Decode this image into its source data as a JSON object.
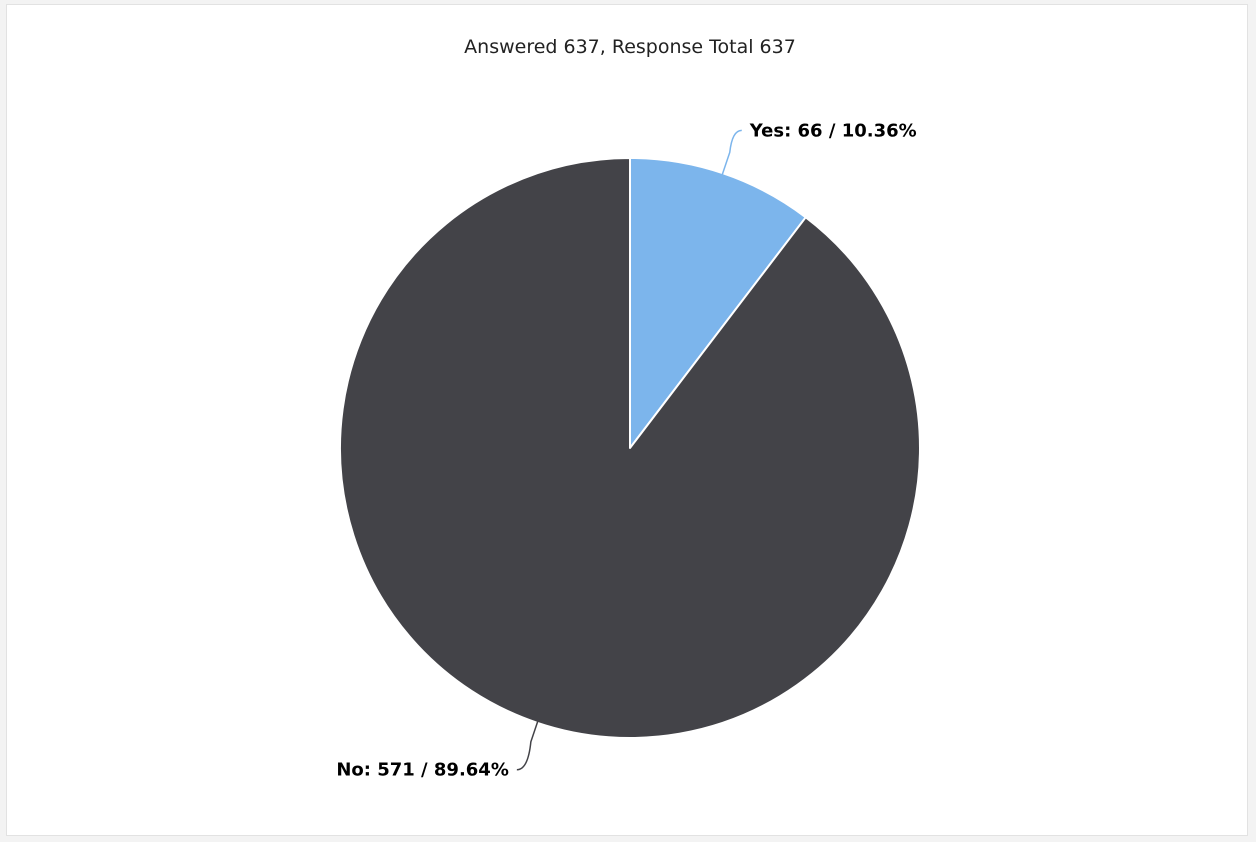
{
  "chart_data": {
    "type": "pie",
    "title": "Answered 637, Response Total 637",
    "slices": [
      {
        "name": "Yes",
        "value": 66,
        "percent": 10.36,
        "label": "Yes: 66 / 10.36%",
        "color": "#7cb5ec"
      },
      {
        "name": "No",
        "value": 571,
        "percent": 89.64,
        "label": "No: 571 / 89.64%",
        "color": "#434348"
      }
    ],
    "legend": "none",
    "start_angle": "top",
    "direction": "clockwise"
  },
  "colors": {
    "connector": "#434348",
    "slice_border": "#ffffff",
    "background": "#ffffff"
  }
}
